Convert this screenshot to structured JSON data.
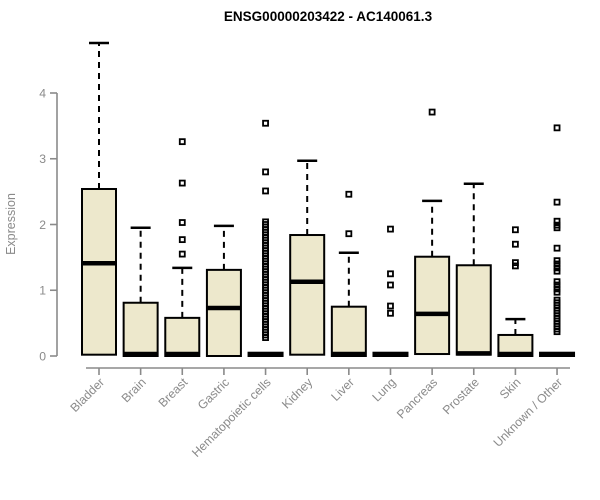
{
  "title": "ENSG00000203422 - AC140061.3",
  "chart_data": {
    "type": "boxplot",
    "title": "ENSG00000203422 - AC140061.3",
    "xlabel": "",
    "ylabel": "Expression",
    "ylim": [
      0,
      4.8
    ],
    "yticks": [
      0,
      1,
      2,
      3,
      4
    ],
    "grid": false,
    "legend": "none",
    "categories": [
      "Bladder",
      "Brain",
      "Breast",
      "Gastric",
      "Hematopoietic cells",
      "Kidney",
      "Liver",
      "Lung",
      "Pancreas",
      "Prostate",
      "Skin",
      "Unknown / Other"
    ],
    "series": [
      {
        "label": "Bladder",
        "whisker_low": 0.02,
        "q1": 0.02,
        "median": 1.41,
        "q3": 2.54,
        "whisker_high": 4.76,
        "outliers": []
      },
      {
        "label": "Brain",
        "whisker_low": 0.0,
        "q1": 0.0,
        "median": 0.03,
        "q3": 0.81,
        "whisker_high": 1.95,
        "outliers": []
      },
      {
        "label": "Breast",
        "whisker_low": 0.0,
        "q1": 0.0,
        "median": 0.03,
        "q3": 0.58,
        "whisker_high": 1.34,
        "outliers": [
          3.26,
          2.63,
          2.03,
          1.77,
          1.55
        ]
      },
      {
        "label": "Gastric",
        "whisker_low": 0.0,
        "q1": 0.0,
        "median": 0.73,
        "q3": 1.31,
        "whisker_high": 1.98,
        "outliers": []
      },
      {
        "label": "Hematopoietic cells",
        "whisker_low": 0.0,
        "q1": 0.0,
        "median": 0.02,
        "q3": 0.05,
        "whisker_high": 0.05,
        "outliers": [
          3.54,
          2.8,
          2.51,
          2.04,
          2.0,
          1.96,
          1.92,
          1.88,
          1.84,
          1.8,
          1.76,
          1.72,
          1.68,
          1.64,
          1.6,
          1.56,
          1.52,
          1.48,
          1.44,
          1.4,
          1.36,
          1.32,
          1.28,
          1.24,
          1.2,
          1.16,
          1.12,
          1.08,
          1.04,
          1.0,
          0.96,
          0.92,
          0.88,
          0.84,
          0.8,
          0.76,
          0.72,
          0.68,
          0.64,
          0.6,
          0.56,
          0.52,
          0.48,
          0.44,
          0.4,
          0.36,
          0.32,
          0.28
        ]
      },
      {
        "label": "Kidney",
        "whisker_low": 0.02,
        "q1": 0.02,
        "median": 1.13,
        "q3": 1.84,
        "whisker_high": 2.97,
        "outliers": []
      },
      {
        "label": "Liver",
        "whisker_low": 0.0,
        "q1": 0.0,
        "median": 0.03,
        "q3": 0.75,
        "whisker_high": 1.57,
        "outliers": [
          2.46,
          1.86
        ]
      },
      {
        "label": "Lung",
        "whisker_low": 0.0,
        "q1": 0.0,
        "median": 0.02,
        "q3": 0.05,
        "whisker_high": 0.05,
        "outliers": [
          1.93,
          1.25,
          1.08,
          0.76,
          0.65
        ]
      },
      {
        "label": "Pancreas",
        "whisker_low": 0.03,
        "q1": 0.03,
        "median": 0.64,
        "q3": 1.51,
        "whisker_high": 2.36,
        "outliers": [
          3.71
        ]
      },
      {
        "label": "Prostate",
        "whisker_low": 0.02,
        "q1": 0.02,
        "median": 0.04,
        "q3": 1.38,
        "whisker_high": 2.62,
        "outliers": []
      },
      {
        "label": "Skin",
        "whisker_low": 0.0,
        "q1": 0.0,
        "median": 0.03,
        "q3": 0.32,
        "whisker_high": 0.56,
        "outliers": [
          1.92,
          1.7,
          1.42,
          1.37
        ]
      },
      {
        "label": "Unknown / Other",
        "whisker_low": 0.0,
        "q1": 0.0,
        "median": 0.02,
        "q3": 0.05,
        "whisker_high": 0.05,
        "outliers": [
          3.47,
          2.34,
          2.05,
          1.99,
          1.95,
          1.64,
          1.45,
          1.4,
          1.34,
          1.29,
          1.13,
          1.08,
          1.02,
          0.97,
          0.85,
          0.81,
          0.77,
          0.73,
          0.69,
          0.65,
          0.61,
          0.57,
          0.53,
          0.49,
          0.45,
          0.41,
          0.37
        ]
      }
    ],
    "colors": {
      "box_fill": "#EDE8CC",
      "box_stroke": "#000000",
      "median": "#000000",
      "whisker": "#000000",
      "outlier_stroke": "#000000",
      "axis": "#8a8a8a",
      "title_color": "#000000",
      "background": "#ffffff"
    }
  }
}
